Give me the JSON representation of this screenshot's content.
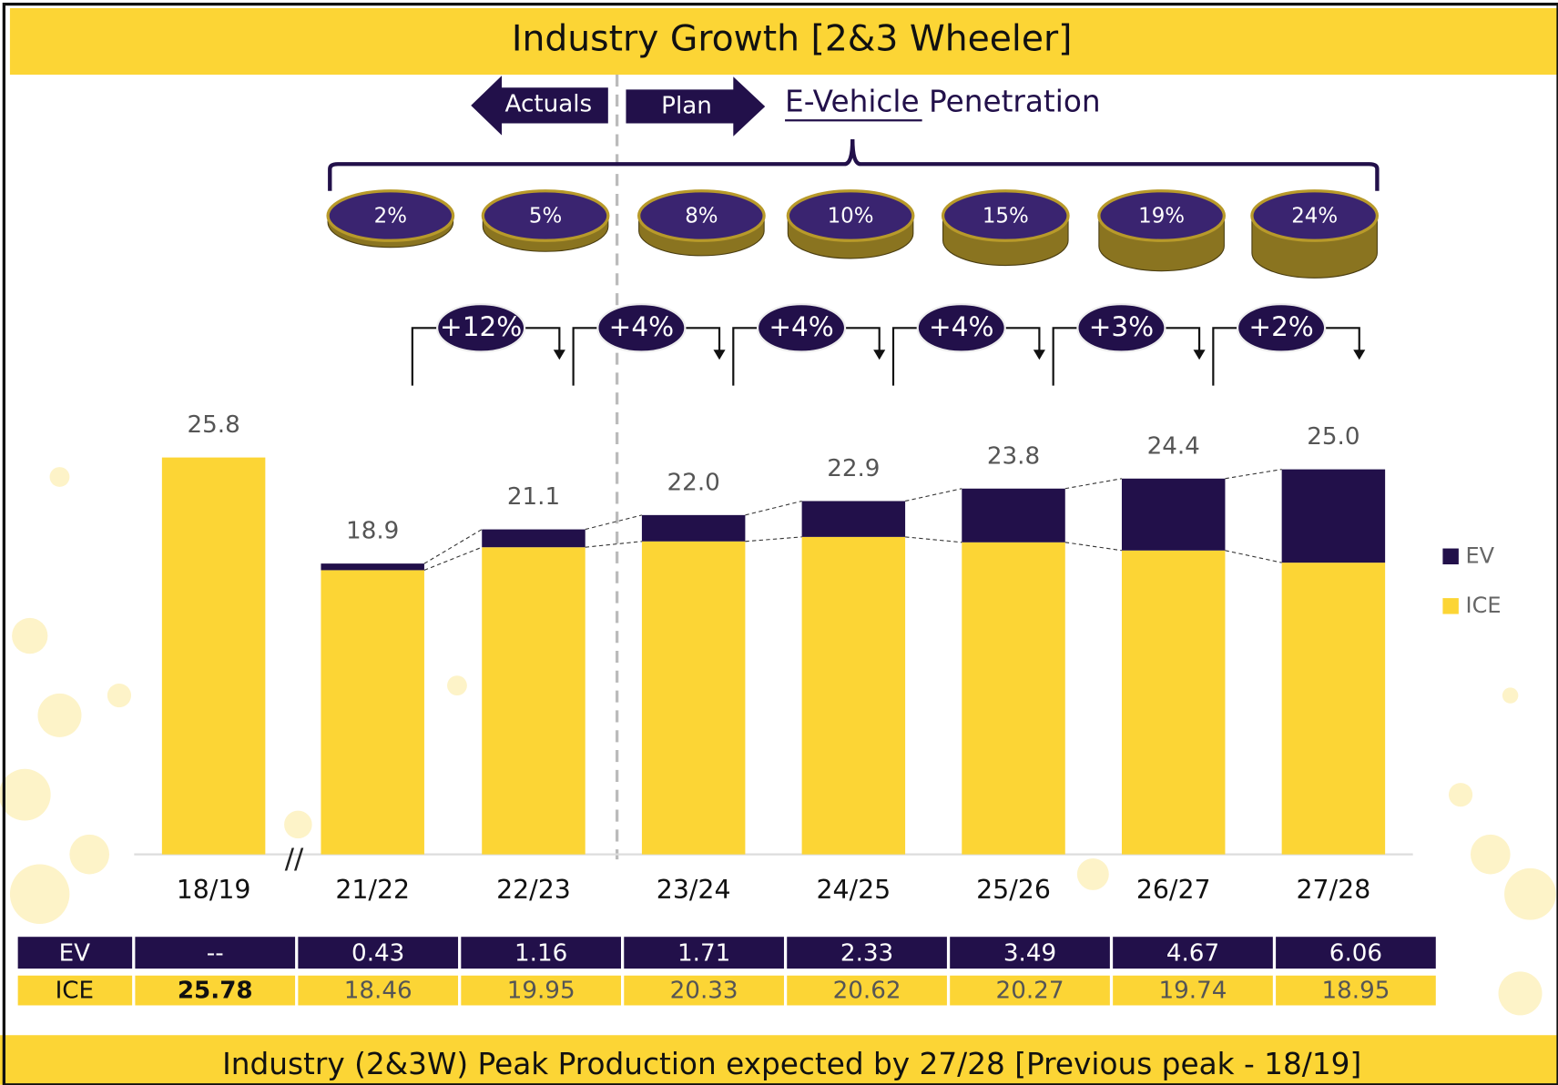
{
  "chart_data": {
    "type": "stacked_bar",
    "title": "Industry Growth [2&3 Wheeler]",
    "footer": "Industry (2&3W) Peak Production expected by 27/28 [Previous peak - 18/19]",
    "actuals_label": "Actuals",
    "plan_label": "Plan",
    "penetration_title": "E-Vehicle Penetration",
    "axis_break": "//",
    "categories": [
      "18/19",
      "21/22",
      "22/23",
      "23/24",
      "24/25",
      "25/26",
      "26/27",
      "27/28"
    ],
    "series": [
      {
        "name": "EV",
        "color": "#22104a",
        "values": [
          null,
          0.43,
          1.16,
          1.71,
          2.33,
          3.49,
          4.67,
          6.06
        ],
        "value_labels": [
          "--",
          "0.43",
          "1.16",
          "1.71",
          "2.33",
          "3.49",
          "4.67",
          "6.06"
        ]
      },
      {
        "name": "ICE",
        "color": "#fcd535",
        "values": [
          25.78,
          18.46,
          19.95,
          20.33,
          20.62,
          20.27,
          19.74,
          18.95
        ]
      }
    ],
    "total_labels": [
      "25.8",
      "18.9",
      "21.1",
      "22.0",
      "22.9",
      "23.8",
      "24.4",
      "25.0"
    ],
    "ev_penetration": [
      {
        "value": 2,
        "label": "2%"
      },
      {
        "value": 5,
        "label": "5%"
      },
      {
        "value": 8,
        "label": "8%"
      },
      {
        "value": 10,
        "label": "10%"
      },
      {
        "value": 15,
        "label": "15%"
      },
      {
        "value": 19,
        "label": "19%"
      },
      {
        "value": 24,
        "label": "24%"
      }
    ],
    "growth_labels": [
      "+12%",
      "+4%",
      "+4%",
      "+4%",
      "+3%",
      "+2%"
    ],
    "ylim": [
      0,
      28
    ],
    "legend": "right"
  }
}
